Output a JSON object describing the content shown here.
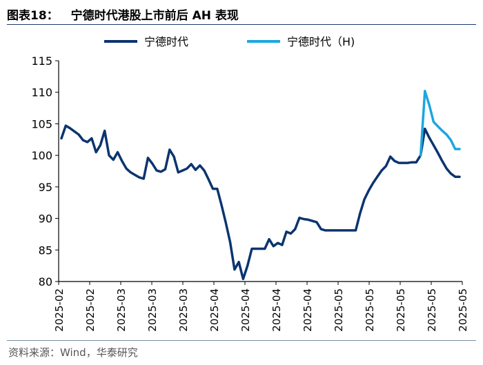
{
  "header": {
    "figure_label": "图表18：",
    "title_text": "宁德时代港股上市前后 AH 表现"
  },
  "footer": {
    "source": "资料来源：Wind，华泰研究"
  },
  "colors": {
    "series_a": "#0b3470",
    "series_h": "#1aa7e0",
    "title_rule": "#1a3a6b"
  },
  "chart_data": {
    "type": "line",
    "title": "",
    "xlabel": "",
    "ylabel": "",
    "ylim": [
      80,
      115
    ],
    "yticks": [
      80,
      85,
      90,
      95,
      100,
      105,
      110,
      115
    ],
    "x_tick_labels": [
      "2025-02",
      "2025-02",
      "2025-03",
      "2025-03",
      "2025-03",
      "2025-04",
      "2025-04",
      "2025-04",
      "2025-04",
      "2025-05",
      "2025-05",
      "2025-05",
      "2025-05",
      "2025-05"
    ],
    "grid": false,
    "legend_position": "top",
    "series": [
      {
        "name": "宁德时代",
        "color": "#0b3470",
        "x_start": "2025-02-17",
        "points": [
          [
            "2025-02-17",
            102.7
          ],
          [
            "2025-02-18",
            104.7
          ],
          [
            "2025-02-19",
            104.3
          ],
          [
            "2025-02-20",
            103.8
          ],
          [
            "2025-02-21",
            103.3
          ],
          [
            "2025-02-24",
            102.4
          ],
          [
            "2025-02-25",
            102.1
          ],
          [
            "2025-02-26",
            102.7
          ],
          [
            "2025-02-27",
            100.5
          ],
          [
            "2025-02-28",
            101.6
          ],
          [
            "2025-03-03",
            103.9
          ],
          [
            "2025-03-04",
            100.0
          ],
          [
            "2025-03-05",
            99.3
          ],
          [
            "2025-03-06",
            100.5
          ],
          [
            "2025-03-07",
            99.1
          ],
          [
            "2025-03-10",
            97.9
          ],
          [
            "2025-03-11",
            97.3
          ],
          [
            "2025-03-12",
            96.9
          ],
          [
            "2025-03-13",
            96.5
          ],
          [
            "2025-03-14",
            96.3
          ],
          [
            "2025-03-17",
            99.6
          ],
          [
            "2025-03-18",
            98.7
          ],
          [
            "2025-03-19",
            97.6
          ],
          [
            "2025-03-20",
            97.4
          ],
          [
            "2025-03-21",
            97.8
          ],
          [
            "2025-03-24",
            100.9
          ],
          [
            "2025-03-25",
            99.8
          ],
          [
            "2025-03-26",
            97.3
          ],
          [
            "2025-03-27",
            97.6
          ],
          [
            "2025-03-28",
            97.9
          ],
          [
            "2025-03-31",
            98.6
          ],
          [
            "2025-04-01",
            97.7
          ],
          [
            "2025-04-02",
            98.4
          ],
          [
            "2025-04-03",
            97.6
          ],
          [
            "2025-04-07",
            96.2
          ],
          [
            "2025-04-08",
            94.7
          ],
          [
            "2025-04-09",
            94.7
          ],
          [
            "2025-04-10",
            92.1
          ],
          [
            "2025-04-11",
            89.3
          ],
          [
            "2025-04-14",
            86.2
          ],
          [
            "2025-04-15",
            81.9
          ],
          [
            "2025-04-16",
            83.1
          ],
          [
            "2025-04-17",
            80.4
          ],
          [
            "2025-04-18",
            82.5
          ],
          [
            "2025-04-21",
            85.2
          ],
          [
            "2025-04-22",
            85.2
          ],
          [
            "2025-04-23",
            85.2
          ],
          [
            "2025-04-24",
            85.2
          ],
          [
            "2025-04-25",
            86.7
          ],
          [
            "2025-04-28",
            85.6
          ],
          [
            "2025-04-29",
            86.1
          ],
          [
            "2025-04-30",
            85.8
          ],
          [
            "2025-05-06",
            87.9
          ],
          [
            "2025-05-07",
            87.6
          ],
          [
            "2025-05-08",
            88.3
          ],
          [
            "2025-05-09",
            90.1
          ],
          [
            "2025-05-12",
            89.9
          ],
          [
            "2025-05-13",
            89.8
          ],
          [
            "2025-05-14",
            89.6
          ],
          [
            "2025-05-15",
            89.4
          ],
          [
            "2025-05-16",
            88.3
          ],
          [
            "2025-05-19",
            88.1
          ],
          [
            "2025-05-20",
            88.1
          ],
          [
            "2025-05-21",
            88.1
          ],
          [
            "2025-05-22",
            88.1
          ],
          [
            "2025-05-23",
            88.1
          ],
          [
            "2025-05-26",
            88.1
          ],
          [
            "2025-05-27",
            88.1
          ],
          [
            "2025-05-28",
            88.1
          ],
          [
            "2025-05-29",
            90.8
          ],
          [
            "2025-05-30",
            93.0
          ],
          [
            "2025-06-03",
            94.4
          ],
          [
            "2025-06-04",
            95.6
          ],
          [
            "2025-06-05",
            96.6
          ],
          [
            "2025-06-06",
            97.6
          ],
          [
            "2025-06-09",
            98.3
          ],
          [
            "2025-06-10",
            99.8
          ],
          [
            "2025-06-11",
            99.1
          ],
          [
            "2025-06-12",
            98.8
          ],
          [
            "2025-06-13",
            98.8
          ],
          [
            "2025-06-16",
            98.8
          ],
          [
            "2025-06-17",
            98.9
          ],
          [
            "2025-06-18",
            98.9
          ],
          [
            "2025-06-19",
            100.0
          ],
          [
            "2025-06-20",
            104.2
          ],
          [
            "2025-06-23",
            102.8
          ],
          [
            "2025-06-24",
            101.6
          ],
          [
            "2025-06-25",
            100.4
          ],
          [
            "2025-06-26",
            99.1
          ],
          [
            "2025-06-27",
            97.9
          ],
          [
            "2025-06-30",
            97.1
          ],
          [
            "2025-07-01",
            96.6
          ],
          [
            "2025-07-02",
            96.6
          ]
        ]
      },
      {
        "name": "宁德时代（H)",
        "color": "#1aa7e0",
        "points": [
          [
            "2025-06-19",
            100.0
          ],
          [
            "2025-06-20",
            110.2
          ],
          [
            "2025-06-23",
            108.0
          ],
          [
            "2025-06-24",
            105.3
          ],
          [
            "2025-06-25",
            104.6
          ],
          [
            "2025-06-26",
            103.9
          ],
          [
            "2025-06-27",
            103.3
          ],
          [
            "2025-06-30",
            102.4
          ],
          [
            "2025-07-01",
            101.0
          ],
          [
            "2025-07-02",
            101.0
          ]
        ]
      }
    ]
  }
}
